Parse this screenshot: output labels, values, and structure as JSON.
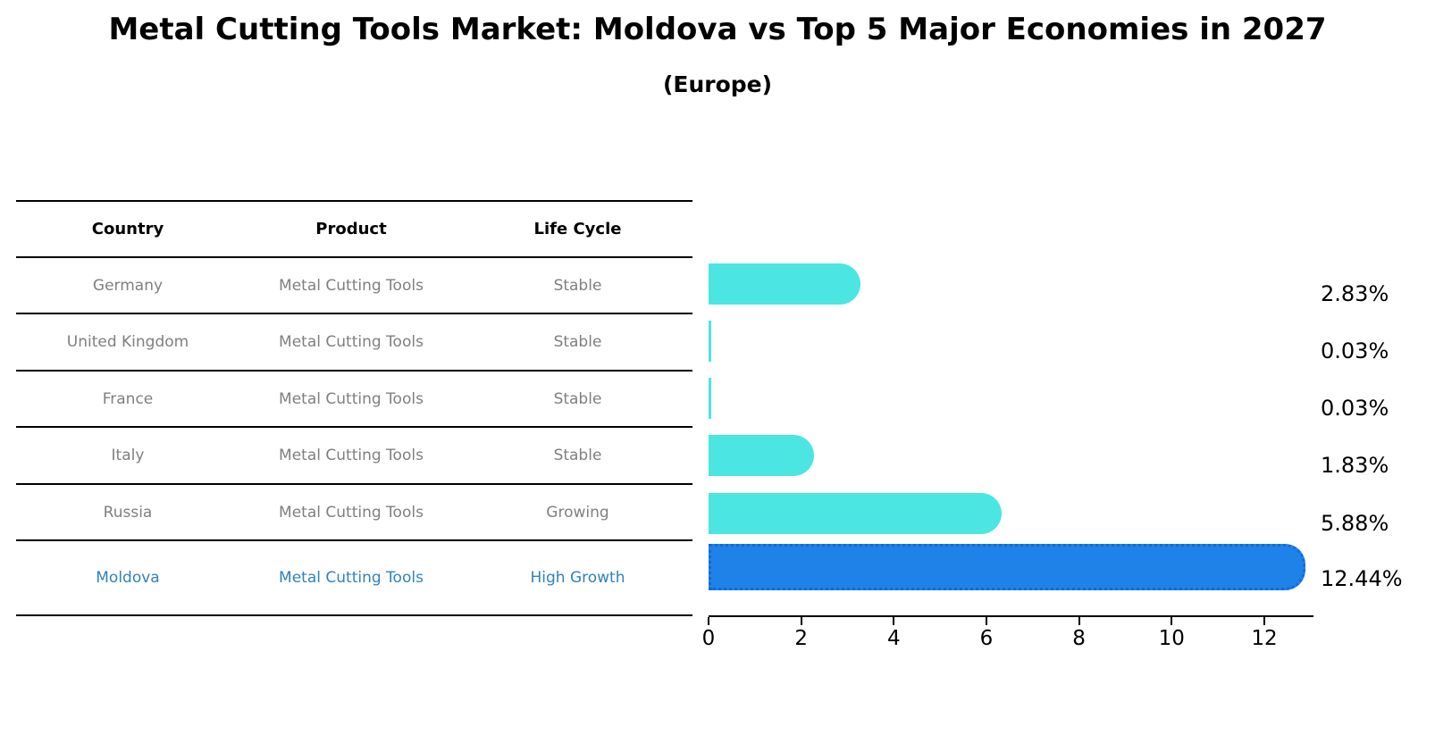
{
  "header": {
    "title": "Metal Cutting Tools Market: Moldova vs Top 5 Major Economies in 2027",
    "subtitle": "(Europe)"
  },
  "table": {
    "headers": [
      "Country",
      "Product",
      "Life Cycle"
    ],
    "rows": [
      {
        "country": "Germany",
        "product": "Metal Cutting Tools",
        "life_cycle": "Stable"
      },
      {
        "country": "United Kingdom",
        "product": "Metal Cutting Tools",
        "life_cycle": "Stable"
      },
      {
        "country": "France",
        "product": "Metal Cutting Tools",
        "life_cycle": "Stable"
      },
      {
        "country": "Italy",
        "product": "Metal Cutting Tools",
        "life_cycle": "Stable"
      },
      {
        "country": "Russia",
        "product": "Metal Cutting Tools",
        "life_cycle": "Growing"
      },
      {
        "country": "Moldova",
        "product": "Metal Cutting Tools",
        "life_cycle": "High Growth"
      }
    ],
    "highlight_row": "Moldova"
  },
  "chart_data": {
    "type": "bar",
    "orientation": "horizontal",
    "title": "Metal Cutting Tools Market: Moldova vs Top 5 Major Economies in 2027 (Europe)",
    "categories": [
      "Germany",
      "United Kingdom",
      "France",
      "Italy",
      "Russia",
      "Moldova"
    ],
    "values": [
      2.83,
      0.03,
      0.03,
      1.83,
      5.88,
      12.44
    ],
    "value_labels": [
      "2.83%",
      "0.03%",
      "0.03%",
      "1.83%",
      "5.88%",
      "12.44%"
    ],
    "unit": "%",
    "xlim": [
      0,
      13
    ],
    "x_ticks": [
      0,
      2,
      4,
      6,
      8,
      10,
      12
    ],
    "highlight_index": 5,
    "grid": false,
    "legend": false
  },
  "colors": {
    "bar_default": "#4BE6E1",
    "bar_highlight": "#1E82E8",
    "bar_highlight_border": "#1569D6",
    "highlight_text": "#3182BD",
    "table_text": "#7F7F7F",
    "axis": "#000000"
  }
}
